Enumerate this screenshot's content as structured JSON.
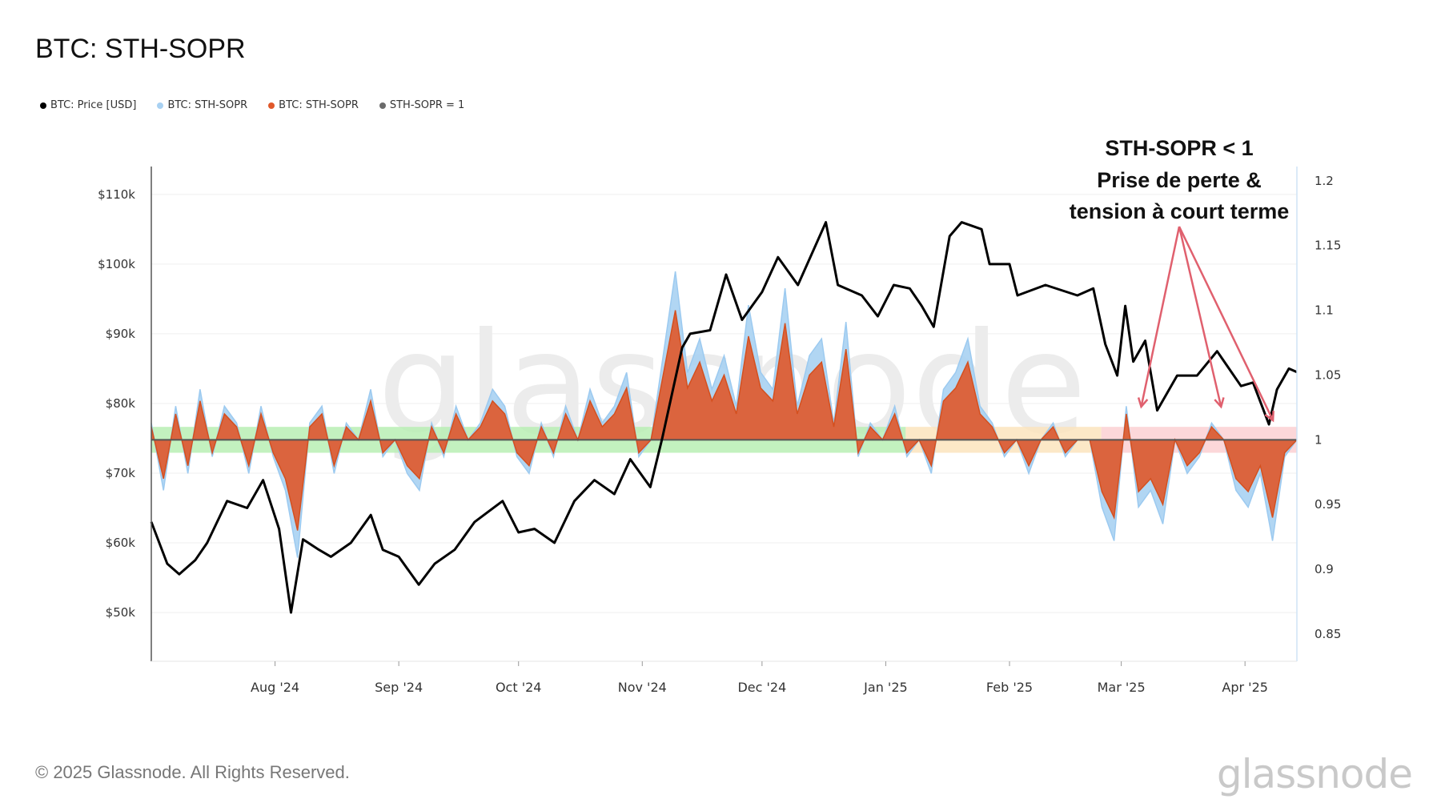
{
  "title": "BTC: STH-SOPR",
  "legend": [
    {
      "label": "BTC: Price [USD]",
      "color": "#000000"
    },
    {
      "label": "BTC: STH-SOPR",
      "color": "#a8d1f2"
    },
    {
      "label": "BTC: STH-SOPR",
      "color": "#e0582a"
    },
    {
      "label": "STH-SOPR = 1",
      "color": "#6b6b6b"
    }
  ],
  "annotation": {
    "line1": "STH-SOPR < 1",
    "line2": "Prise de perte &",
    "line3": "tension à court terme",
    "color": "#e0606e"
  },
  "footer": "© 2025 Glassnode. All Rights Reserved.",
  "logo": "glassnode",
  "watermark": "glassnode",
  "chart_data": {
    "type": "line",
    "title": "BTC: STH-SOPR",
    "x_range": [
      "2024-07-01",
      "2025-04-14"
    ],
    "x_ticks": [
      {
        "label": "Aug '24",
        "date": "2024-08-01"
      },
      {
        "label": "Sep '24",
        "date": "2024-09-01"
      },
      {
        "label": "Oct '24",
        "date": "2024-10-01"
      },
      {
        "label": "Nov '24",
        "date": "2024-11-01"
      },
      {
        "label": "Dec '24",
        "date": "2024-12-01"
      },
      {
        "label": "Jan '25",
        "date": "2025-01-01"
      },
      {
        "label": "Feb '25",
        "date": "2025-02-01"
      },
      {
        "label": "Mar '25",
        "date": "2025-03-01"
      },
      {
        "label": "Apr '25",
        "date": "2025-04-01"
      }
    ],
    "y_left": {
      "label": "Price [USD]",
      "range": [
        43000,
        114000
      ],
      "ticks": [
        {
          "v": 50000,
          "label": "$50k"
        },
        {
          "v": 60000,
          "label": "$60k"
        },
        {
          "v": 70000,
          "label": "$70k"
        },
        {
          "v": 80000,
          "label": "$80k"
        },
        {
          "v": 90000,
          "label": "$90k"
        },
        {
          "v": 100000,
          "label": "$100k"
        },
        {
          "v": 110000,
          "label": "$110k"
        }
      ]
    },
    "y_right": {
      "label": "STH-SOPR",
      "range": [
        0.829,
        1.211
      ],
      "ticks": [
        {
          "v": 0.85,
          "label": "0.85"
        },
        {
          "v": 0.9,
          "label": "0.9"
        },
        {
          "v": 0.95,
          "label": "0.95"
        },
        {
          "v": 1.0,
          "label": "1"
        },
        {
          "v": 1.05,
          "label": "1.05"
        },
        {
          "v": 1.1,
          "label": "1.1"
        },
        {
          "v": 1.15,
          "label": "1.15"
        },
        {
          "v": 1.2,
          "label": "1.2"
        }
      ]
    },
    "reference_line": {
      "name": "STH-SOPR = 1",
      "value": 1.0
    },
    "bands": [
      {
        "from": "2024-07-01",
        "to": "2025-01-06",
        "low": 0.99,
        "high": 1.01,
        "color": "#b9efb4"
      },
      {
        "from": "2025-01-06",
        "to": "2025-02-24",
        "low": 0.99,
        "high": 1.01,
        "color": "#fbe4bd"
      },
      {
        "from": "2025-02-24",
        "to": "2025-04-14",
        "low": 0.99,
        "high": 1.01,
        "color": "#fbd0d2"
      }
    ],
    "price": [
      [
        "2024-07-01",
        63000
      ],
      [
        "2024-07-05",
        57000
      ],
      [
        "2024-07-08",
        55500
      ],
      [
        "2024-07-12",
        57500
      ],
      [
        "2024-07-15",
        60000
      ],
      [
        "2024-07-20",
        66000
      ],
      [
        "2024-07-25",
        65000
      ],
      [
        "2024-07-29",
        69000
      ],
      [
        "2024-08-02",
        62000
      ],
      [
        "2024-08-05",
        50000
      ],
      [
        "2024-08-08",
        60500
      ],
      [
        "2024-08-12",
        59000
      ],
      [
        "2024-08-15",
        58000
      ],
      [
        "2024-08-20",
        60000
      ],
      [
        "2024-08-25",
        64000
      ],
      [
        "2024-08-28",
        59000
      ],
      [
        "2024-09-01",
        58000
      ],
      [
        "2024-09-06",
        54000
      ],
      [
        "2024-09-10",
        57000
      ],
      [
        "2024-09-15",
        59000
      ],
      [
        "2024-09-20",
        63000
      ],
      [
        "2024-09-27",
        66000
      ],
      [
        "2024-10-01",
        61500
      ],
      [
        "2024-10-05",
        62000
      ],
      [
        "2024-10-10",
        60000
      ],
      [
        "2024-10-15",
        66000
      ],
      [
        "2024-10-20",
        69000
      ],
      [
        "2024-10-25",
        67000
      ],
      [
        "2024-10-29",
        72000
      ],
      [
        "2024-11-03",
        68000
      ],
      [
        "2024-11-06",
        75000
      ],
      [
        "2024-11-11",
        88000
      ],
      [
        "2024-11-13",
        90000
      ],
      [
        "2024-11-18",
        90500
      ],
      [
        "2024-11-22",
        98500
      ],
      [
        "2024-11-26",
        92000
      ],
      [
        "2024-12-01",
        96000
      ],
      [
        "2024-12-05",
        101000
      ],
      [
        "2024-12-10",
        97000
      ],
      [
        "2024-12-17",
        106000
      ],
      [
        "2024-12-20",
        97000
      ],
      [
        "2024-12-26",
        95500
      ],
      [
        "2024-12-30",
        92500
      ],
      [
        "2025-01-03",
        97000
      ],
      [
        "2025-01-07",
        96500
      ],
      [
        "2025-01-10",
        94000
      ],
      [
        "2025-01-13",
        91000
      ],
      [
        "2025-01-17",
        104000
      ],
      [
        "2025-01-20",
        106000
      ],
      [
        "2025-01-25",
        105000
      ],
      [
        "2025-01-27",
        100000
      ],
      [
        "2025-02-01",
        100000
      ],
      [
        "2025-02-03",
        95500
      ],
      [
        "2025-02-10",
        97000
      ],
      [
        "2025-02-18",
        95500
      ],
      [
        "2025-02-22",
        96500
      ],
      [
        "2025-02-25",
        88500
      ],
      [
        "2025-02-28",
        84000
      ],
      [
        "2025-03-02",
        94000
      ],
      [
        "2025-03-04",
        86000
      ],
      [
        "2025-03-07",
        89000
      ],
      [
        "2025-03-10",
        79000
      ],
      [
        "2025-03-15",
        84000
      ],
      [
        "2025-03-20",
        84000
      ],
      [
        "2025-03-25",
        87500
      ],
      [
        "2025-03-31",
        82500
      ],
      [
        "2025-04-03",
        83000
      ],
      [
        "2025-04-07",
        77000
      ],
      [
        "2025-04-09",
        82000
      ],
      [
        "2025-04-12",
        85000
      ],
      [
        "2025-04-14",
        84500
      ]
    ],
    "sth_sopr_raw": [
      1.013,
      0.961,
      1.026,
      0.974,
      1.039,
      0.987,
      1.026,
      1.013,
      0.974,
      1.026,
      0.987,
      0.961,
      0.909,
      1.013,
      1.026,
      0.974,
      1.013,
      1.0,
      1.039,
      0.987,
      1.0,
      0.974,
      0.961,
      1.013,
      0.987,
      1.026,
      1.0,
      1.013,
      1.039,
      1.026,
      0.987,
      0.974,
      1.013,
      0.987,
      1.026,
      1.0,
      1.039,
      1.013,
      1.026,
      1.052,
      0.987,
      1.0,
      1.065,
      1.13,
      1.052,
      1.078,
      1.039,
      1.065,
      1.026,
      1.104,
      1.052,
      1.039,
      1.117,
      1.026,
      1.065,
      1.078,
      1.013,
      1.091,
      0.987,
      1.013,
      1.0,
      1.026,
      0.987,
      1.0,
      0.974,
      1.039,
      1.052,
      1.078,
      1.026,
      1.013,
      0.987,
      1.0,
      0.974,
      1.0,
      1.013,
      0.987,
      1.0,
      1.0,
      0.948,
      0.922,
      1.026,
      0.948,
      0.961,
      0.935,
      1.0,
      0.974,
      0.987,
      1.013,
      1.0,
      0.961,
      0.948,
      0.974,
      0.922,
      0.987,
      1.0
    ],
    "sth_sopr": [
      1.01,
      0.97,
      1.02,
      0.98,
      1.03,
      0.99,
      1.02,
      1.01,
      0.98,
      1.02,
      0.99,
      0.97,
      0.93,
      1.01,
      1.02,
      0.98,
      1.01,
      1.0,
      1.03,
      0.99,
      1.0,
      0.98,
      0.97,
      1.01,
      0.99,
      1.02,
      1.0,
      1.01,
      1.03,
      1.02,
      0.99,
      0.98,
      1.01,
      0.99,
      1.02,
      1.0,
      1.03,
      1.01,
      1.02,
      1.04,
      0.99,
      1.0,
      1.05,
      1.1,
      1.04,
      1.06,
      1.03,
      1.05,
      1.02,
      1.08,
      1.04,
      1.03,
      1.09,
      1.02,
      1.05,
      1.06,
      1.01,
      1.07,
      0.99,
      1.01,
      1.0,
      1.02,
      0.99,
      1.0,
      0.98,
      1.03,
      1.04,
      1.06,
      1.02,
      1.01,
      0.99,
      1.0,
      0.98,
      1.0,
      1.01,
      0.99,
      1.0,
      1.0,
      0.96,
      0.94,
      1.02,
      0.96,
      0.97,
      0.95,
      1.0,
      0.98,
      0.99,
      1.01,
      1.0,
      0.97,
      0.96,
      0.98,
      0.94,
      0.99,
      1.0
    ],
    "annotation_targets": [
      "2025-03-06",
      "2025-03-26",
      "2025-04-08"
    ]
  }
}
